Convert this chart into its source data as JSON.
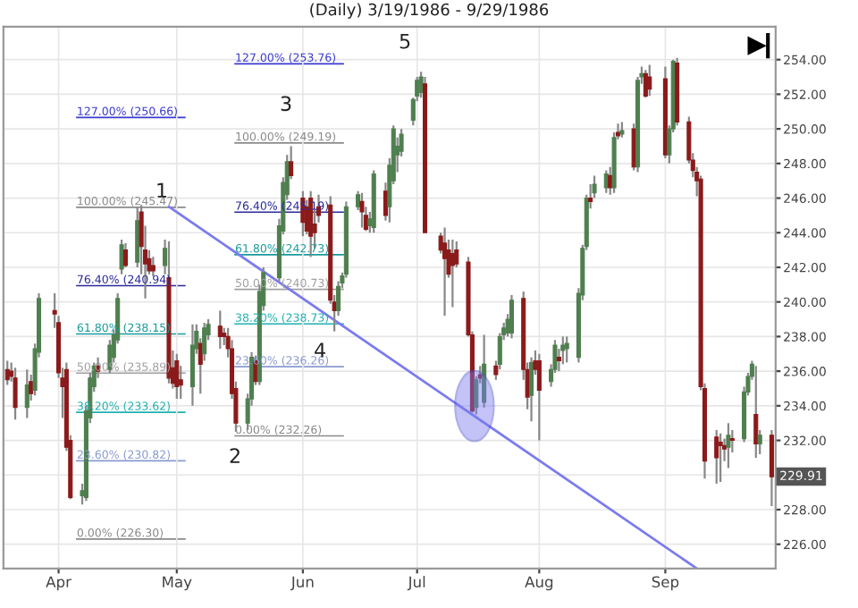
{
  "chart_data": {
    "type": "candlestick",
    "title": "(Daily) 3/19/1986 - 9/29/1986",
    "x": [
      "1986-03-19",
      "1986-03-20",
      "1986-03-21",
      "1986-03-24",
      "1986-03-25",
      "1986-03-26",
      "1986-03-27",
      "1986-03-31",
      "1986-04-01",
      "1986-04-02",
      "1986-04-03",
      "1986-04-04",
      "1986-04-07",
      "1986-04-08",
      "1986-04-09",
      "1986-04-10",
      "1986-04-11",
      "1986-04-14",
      "1986-04-15",
      "1986-04-16",
      "1986-04-17",
      "1986-04-18",
      "1986-04-21",
      "1986-04-22",
      "1986-04-23",
      "1986-04-24",
      "1986-04-25",
      "1986-04-28",
      "1986-04-29",
      "1986-04-30",
      "1986-05-01",
      "1986-05-02",
      "1986-05-05",
      "1986-05-06",
      "1986-05-07",
      "1986-05-08",
      "1986-05-09",
      "1986-05-12",
      "1986-05-13",
      "1986-05-14",
      "1986-05-15",
      "1986-05-16",
      "1986-05-19",
      "1986-05-20",
      "1986-05-21",
      "1986-05-22",
      "1986-05-23",
      "1986-05-27",
      "1986-05-28",
      "1986-05-29",
      "1986-05-30",
      "1986-06-02",
      "1986-06-03",
      "1986-06-04",
      "1986-06-05",
      "1986-06-06",
      "1986-06-09",
      "1986-06-10",
      "1986-06-11",
      "1986-06-12",
      "1986-06-13",
      "1986-06-16",
      "1986-06-17",
      "1986-06-18",
      "1986-06-19",
      "1986-06-20",
      "1986-06-23",
      "1986-06-24",
      "1986-06-25",
      "1986-06-26",
      "1986-06-27",
      "1986-06-30",
      "1986-07-01",
      "1986-07-02",
      "1986-07-03",
      "1986-07-07",
      "1986-07-08",
      "1986-07-09",
      "1986-07-10",
      "1986-07-11",
      "1986-07-14",
      "1986-07-15",
      "1986-07-16",
      "1986-07-17",
      "1986-07-18",
      "1986-07-21",
      "1986-07-22",
      "1986-07-23",
      "1986-07-24",
      "1986-07-25",
      "1986-07-28",
      "1986-07-29",
      "1986-07-30",
      "1986-07-31",
      "1986-08-01",
      "1986-08-04",
      "1986-08-05",
      "1986-08-06",
      "1986-08-07",
      "1986-08-08",
      "1986-08-11",
      "1986-08-12",
      "1986-08-13",
      "1986-08-14",
      "1986-08-15",
      "1986-08-18",
      "1986-08-19",
      "1986-08-20",
      "1986-08-21",
      "1986-08-22",
      "1986-08-25",
      "1986-08-26",
      "1986-08-27",
      "1986-08-28",
      "1986-08-29",
      "1986-09-02",
      "1986-09-03",
      "1986-09-04",
      "1986-09-05",
      "1986-09-08",
      "1986-09-09",
      "1986-09-10",
      "1986-09-11",
      "1986-09-12",
      "1986-09-15",
      "1986-09-16",
      "1986-09-17",
      "1986-09-18",
      "1986-09-19",
      "1986-09-22",
      "1986-09-23",
      "1986-09-24",
      "1986-09-25",
      "1986-09-26",
      "1986-09-29"
    ],
    "ohlc": [
      [
        236.1,
        236.6,
        235.2,
        235.5
      ],
      [
        236.0,
        236.5,
        235.4,
        235.7
      ],
      [
        235.6,
        236.2,
        233.2,
        233.9
      ],
      [
        233.9,
        236.1,
        233.3,
        235.2
      ],
      [
        235.4,
        235.8,
        234.3,
        234.7
      ],
      [
        234.9,
        237.6,
        234.6,
        237.3
      ],
      [
        237.1,
        240.5,
        236.8,
        240.2
      ],
      [
        239.5,
        240.5,
        238.5,
        239.3
      ],
      [
        238.8,
        239.2,
        235.6,
        235.9
      ],
      [
        235.6,
        236.2,
        233.3,
        235.1
      ],
      [
        236.1,
        236.5,
        231.4,
        231.6
      ],
      [
        232.0,
        232.3,
        228.6,
        228.7
      ],
      [
        228.8,
        229.5,
        228.3,
        229.1
      ],
      [
        228.7,
        234.0,
        228.5,
        233.7
      ],
      [
        233.3,
        235.9,
        233.0,
        235.6
      ],
      [
        235.1,
        236.5,
        234.8,
        236.3
      ],
      [
        236.3,
        236.8,
        235.6,
        236.0
      ],
      [
        236.1,
        237.8,
        235.9,
        237.5
      ],
      [
        236.8,
        238.4,
        236.5,
        238.1
      ],
      [
        237.8,
        240.5,
        237.6,
        240.2
      ],
      [
        241.9,
        243.6,
        241.6,
        243.3
      ],
      [
        243.0,
        243.4,
        242.0,
        242.1
      ],
      [
        242.3,
        245.5,
        242.0,
        244.7
      ],
      [
        245.2,
        245.6,
        241.6,
        243.2
      ],
      [
        243.0,
        244.4,
        240.2,
        242.2
      ],
      [
        242.5,
        243.0,
        241.6,
        241.8
      ],
      [
        242.1,
        242.6,
        241.5,
        241.8
      ],
      [
        242.1,
        243.6,
        241.6,
        243.1
      ],
      [
        241.4,
        243.5,
        235.3,
        235.6
      ],
      [
        236.2,
        237.2,
        235.0,
        235.3
      ],
      [
        236.6,
        237.0,
        234.4,
        235.1
      ],
      [
        235.5,
        236.3,
        234.4,
        235.2
      ],
      [
        235.1,
        238.7,
        234.0,
        237.5
      ],
      [
        237.3,
        238.7,
        237.0,
        238.3
      ],
      [
        237.6,
        237.9,
        234.7,
        236.4
      ],
      [
        237.0,
        238.8,
        236.6,
        238.5
      ],
      [
        238.1,
        239.0,
        237.8,
        238.7
      ],
      [
        238.6,
        239.5,
        237.3,
        238.0
      ],
      [
        238.2,
        238.5,
        237.5,
        238.0
      ],
      [
        238.0,
        238.5,
        236.8,
        237.3
      ],
      [
        237.3,
        237.8,
        234.4,
        234.7
      ],
      [
        235.0,
        235.4,
        232.5,
        233.0
      ],
      [
        233.0,
        234.7,
        232.6,
        234.4
      ],
      [
        234.4,
        237.1,
        234.0,
        236.8
      ],
      [
        236.6,
        236.9,
        235.2,
        235.4
      ],
      [
        235.4,
        241.0,
        235.2,
        240.6
      ],
      [
        239.8,
        242.0,
        239.5,
        241.7
      ],
      [
        241.4,
        244.8,
        241.2,
        244.4
      ],
      [
        244.1,
        247.2,
        243.9,
        246.9
      ],
      [
        246.2,
        248.5,
        245.9,
        248.1
      ],
      [
        248.1,
        249.0,
        247.1,
        247.3
      ],
      [
        246.0,
        246.4,
        243.8,
        244.6
      ],
      [
        245.5,
        245.9,
        243.9,
        244.1
      ],
      [
        246.0,
        246.4,
        242.6,
        243.8
      ],
      [
        244.5,
        245.3,
        243.1,
        244.0
      ],
      [
        245.5,
        246.2,
        244.6,
        245.0
      ],
      [
        245.6,
        246.1,
        239.9,
        240.1
      ],
      [
        240.0,
        240.4,
        238.3,
        239.5
      ],
      [
        239.5,
        241.2,
        239.2,
        240.9
      ],
      [
        241.1,
        241.7,
        240.8,
        241.5
      ],
      [
        241.6,
        245.8,
        241.4,
        245.5
      ],
      [
        245.5,
        246.4,
        245.3,
        246.2
      ],
      [
        245.8,
        246.3,
        244.3,
        245.2
      ],
      [
        245.0,
        245.5,
        244.1,
        244.2
      ],
      [
        244.4,
        245.2,
        244.0,
        244.8
      ],
      [
        244.3,
        247.6,
        244.0,
        247.4
      ],
      [
        246.4,
        246.9,
        244.7,
        245.0
      ],
      [
        245.5,
        248.3,
        244.6,
        247.9
      ],
      [
        247.0,
        250.2,
        246.8,
        250.0
      ],
      [
        248.5,
        249.5,
        247.5,
        249.0
      ],
      [
        248.7,
        250.0,
        248.4,
        249.7
      ],
      [
        250.5,
        251.8,
        250.2,
        251.7
      ],
      [
        251.9,
        253.0,
        251.6,
        252.8
      ],
      [
        252.1,
        253.3,
        251.8,
        253.0
      ],
      [
        252.6,
        253.0,
        244.0,
        244.0
      ],
      [
        243.8,
        244.0,
        242.8,
        243.0
      ],
      [
        243.4,
        244.3,
        239.2,
        242.5
      ],
      [
        243.0,
        243.6,
        241.4,
        241.6
      ],
      [
        242.8,
        243.6,
        239.7,
        242.1
      ],
      [
        243.0,
        243.5,
        242.0,
        242.2
      ],
      [
        242.3,
        242.6,
        238.0,
        238.1
      ],
      [
        238.1,
        238.3,
        233.6,
        233.7
      ],
      [
        233.9,
        235.7,
        233.5,
        235.5
      ],
      [
        235.8,
        236.3,
        235.3,
        235.6
      ],
      [
        234.2,
        238.1,
        233.9,
        236.4
      ],
      [
        236.3,
        236.6,
        235.5,
        235.8
      ],
      [
        236.4,
        238.2,
        236.1,
        238.0
      ],
      [
        238.1,
        238.8,
        237.8,
        238.5
      ],
      [
        238.2,
        239.3,
        238.0,
        239.0
      ],
      [
        238.2,
        240.4,
        237.9,
        240.1
      ],
      [
        240.2,
        240.6,
        235.5,
        236.1
      ],
      [
        236.1,
        236.5,
        233.8,
        234.5
      ],
      [
        234.6,
        236.8,
        233.1,
        236.5
      ],
      [
        236.6,
        237.2,
        235.8,
        236.1
      ],
      [
        236.6,
        237.0,
        232.0,
        234.9
      ],
      [
        235.4,
        236.4,
        235.1,
        236.1
      ],
      [
        236.1,
        237.8,
        235.9,
        237.5
      ],
      [
        236.8,
        237.3,
        236.0,
        236.6
      ],
      [
        237.2,
        238.0,
        236.4,
        237.5
      ],
      [
        237.3,
        238.0,
        236.5,
        237.6
      ],
      [
        236.8,
        240.8,
        236.5,
        240.5
      ],
      [
        240.4,
        243.3,
        240.1,
        243.1
      ],
      [
        243.2,
        246.2,
        243.0,
        246.0
      ],
      [
        246.0,
        246.8,
        245.4,
        245.8
      ],
      [
        246.3,
        247.3,
        246.0,
        246.8
      ],
      [
        246.6,
        247.6,
        246.3,
        247.4
      ],
      [
        247.3,
        247.8,
        246.2,
        246.6
      ],
      [
        246.6,
        249.8,
        246.3,
        249.5
      ],
      [
        249.8,
        250.3,
        249.4,
        249.6
      ],
      [
        249.7,
        250.4,
        249.5,
        249.9
      ],
      [
        250.0,
        250.3,
        247.6,
        247.8
      ],
      [
        247.8,
        253.0,
        247.5,
        252.8
      ],
      [
        253.0,
        253.6,
        252.6,
        253.2
      ],
      [
        253.2,
        253.4,
        251.8,
        251.9
      ],
      [
        253.0,
        253.7,
        251.9,
        252.3
      ],
      [
        252.9,
        253.6,
        248.3,
        248.5
      ],
      [
        248.5,
        250.2,
        248.0,
        250.0
      ],
      [
        250.0,
        254.0,
        249.8,
        253.9
      ],
      [
        253.8,
        254.1,
        250.2,
        250.4
      ],
      [
        250.4,
        250.7,
        248.0,
        248.2
      ],
      [
        248.2,
        248.6,
        247.2,
        247.6
      ],
      [
        247.5,
        247.8,
        246.1,
        247.0
      ],
      [
        247.1,
        247.3,
        234.9,
        235.1
      ],
      [
        235.0,
        235.3,
        229.8,
        230.8
      ],
      [
        232.2,
        232.6,
        229.5,
        231.0
      ],
      [
        231.9,
        232.4,
        229.6,
        231.7
      ],
      [
        231.7,
        232.1,
        230.8,
        231.5
      ],
      [
        231.6,
        233.0,
        230.4,
        232.3
      ],
      [
        232.1,
        232.6,
        231.3,
        232.0
      ],
      [
        232.1,
        235.1,
        231.9,
        234.8
      ],
      [
        234.8,
        235.9,
        234.6,
        235.7
      ],
      [
        235.7,
        236.6,
        235.5,
        236.4
      ],
      [
        233.5,
        236.3,
        231.0,
        231.8
      ],
      [
        231.8,
        232.6,
        231.2,
        232.3
      ],
      [
        232.3,
        232.6,
        228.2,
        229.9
      ]
    ],
    "colors": [
      "#8b1a1a",
      "#8b1a1a",
      "#8b1a1a",
      "#4f7f4f",
      "#8b1a1a",
      "#4f7f4f",
      "#4f7f4f",
      "#8b1a1a",
      "#8b1a1a",
      "#8b1a1a",
      "#8b1a1a",
      "#8b1a1a",
      "#4f7f4f",
      "#4f7f4f",
      "#4f7f4f",
      "#4f7f4f",
      "#8b1a1a",
      "#4f7f4f",
      "#4f7f4f",
      "#4f7f4f",
      "#4f7f4f",
      "#8b1a1a",
      "#4f7f4f",
      "#8b1a1a",
      "#8b1a1a",
      "#8b1a1a",
      "#8b1a1a",
      "#4f7f4f",
      "#8b1a1a",
      "#8b1a1a",
      "#8b1a1a",
      "#8b1a1a",
      "#4f7f4f",
      "#4f7f4f",
      "#8b1a1a",
      "#4f7f4f",
      "#4f7f4f",
      "#8b1a1a",
      "#8b1a1a",
      "#8b1a1a",
      "#8b1a1a",
      "#8b1a1a",
      "#4f7f4f",
      "#4f7f4f",
      "#8b1a1a",
      "#4f7f4f",
      "#4f7f4f",
      "#4f7f4f",
      "#4f7f4f",
      "#4f7f4f",
      "#8b1a1a",
      "#8b1a1a",
      "#8b1a1a",
      "#8b1a1a",
      "#8b1a1a",
      "#8b1a1a",
      "#8b1a1a",
      "#8b1a1a",
      "#4f7f4f",
      "#4f7f4f",
      "#4f7f4f",
      "#4f7f4f",
      "#8b1a1a",
      "#8b1a1a",
      "#4f7f4f",
      "#4f7f4f",
      "#8b1a1a",
      "#4f7f4f",
      "#4f7f4f",
      "#4f7f4f",
      "#4f7f4f",
      "#4f7f4f",
      "#4f7f4f",
      "#4f7f4f",
      "#8b1a1a",
      "#8b1a1a",
      "#8b1a1a",
      "#8b1a1a",
      "#8b1a1a",
      "#8b1a1a",
      "#8b1a1a",
      "#8b1a1a",
      "#4f7f4f",
      "#8b1a1a",
      "#4f7f4f",
      "#8b1a1a",
      "#4f7f4f",
      "#4f7f4f",
      "#4f7f4f",
      "#4f7f4f",
      "#8b1a1a",
      "#8b1a1a",
      "#4f7f4f",
      "#8b1a1a",
      "#8b1a1a",
      "#4f7f4f",
      "#4f7f4f",
      "#8b1a1a",
      "#4f7f4f",
      "#4f7f4f",
      "#4f7f4f",
      "#4f7f4f",
      "#4f7f4f",
      "#8b1a1a",
      "#4f7f4f",
      "#4f7f4f",
      "#8b1a1a",
      "#4f7f4f",
      "#8b1a1a",
      "#4f7f4f",
      "#8b1a1a",
      "#4f7f4f",
      "#4f7f4f",
      "#8b1a1a",
      "#8b1a1a",
      "#8b1a1a",
      "#4f7f4f",
      "#4f7f4f",
      "#8b1a1a",
      "#8b1a1a",
      "#8b1a1a",
      "#8b1a1a",
      "#8b1a1a",
      "#8b1a1a",
      "#8b1a1a",
      "#8b1a1a",
      "#8b1a1a",
      "#4f7f4f",
      "#8b1a1a",
      "#4f7f4f",
      "#4f7f4f",
      "#4f7f4f",
      "#8b1a1a",
      "#4f7f4f",
      "#8b1a1a"
    ],
    "series": [
      {
        "type": "line",
        "color": "#7b7bf0",
        "x": [
          "1986-04-29",
          "1986-09-10"
        ],
        "values": [
          245.5,
          224.6
        ]
      }
    ],
    "xlim": [
      "1986-03-18",
      "1986-09-30"
    ],
    "xticks": [
      {
        "value": "1986-04-01",
        "label": "Apr"
      },
      {
        "value": "1986-05-01",
        "label": "May"
      },
      {
        "value": "1986-06-02",
        "label": "Jun"
      },
      {
        "value": "1986-07-01",
        "label": "Jul"
      },
      {
        "value": "1986-08-01",
        "label": "Aug"
      },
      {
        "value": "1986-09-02",
        "label": "Sep"
      }
    ],
    "ylim": [
      224.6,
      255.9
    ],
    "yticks": [
      {
        "value": 226,
        "label": "226.00"
      },
      {
        "value": 228,
        "label": "228.00"
      },
      {
        "value": 230,
        "label": null
      },
      {
        "value": 232,
        "label": "232.00"
      },
      {
        "value": 234,
        "label": "234.00"
      },
      {
        "value": 236,
        "label": "236.00"
      },
      {
        "value": 238,
        "label": "238.00"
      },
      {
        "value": 240,
        "label": "240.00"
      },
      {
        "value": 242,
        "label": "242.00"
      },
      {
        "value": 244,
        "label": "244.00"
      },
      {
        "value": 246,
        "label": "246.00"
      },
      {
        "value": 248,
        "label": "248.00"
      },
      {
        "value": 250,
        "label": "250.00"
      },
      {
        "value": 252,
        "label": "252.00"
      },
      {
        "value": 254,
        "label": "254.00"
      }
    ],
    "grid": true,
    "ref_lines": [
      {
        "axis": "y",
        "value": 250.66,
        "label": "127.00% (250.66)",
        "color": "#3a3ad0"
      },
      {
        "axis": "y",
        "value": 245.47,
        "label": "100.00% (245.47)",
        "color": "#8a8a8a"
      },
      {
        "axis": "y",
        "value": 240.94,
        "label": "76.40% (240.94)",
        "color": "#2a2a9a"
      },
      {
        "axis": "y",
        "value": 238.15,
        "label": "61.80% (238.15)",
        "color": "#1a9a9a"
      },
      {
        "axis": "y",
        "value": 235.89,
        "label": "50.00% (235.89)",
        "color": "#a0a0a0"
      },
      {
        "axis": "y",
        "value": 233.62,
        "label": "38.20% (233.62)",
        "color": "#20b0b0"
      },
      {
        "axis": "y",
        "value": 230.82,
        "label": "23.60% (230.82)",
        "color": "#8a9ad0"
      },
      {
        "axis": "y",
        "value": 226.3,
        "label": "0.00% (226.30)",
        "color": "#8a8a8a"
      },
      {
        "axis": "y",
        "value": 253.76,
        "label": "127.00% (253.76)",
        "color": "#3a3ad0"
      },
      {
        "axis": "y",
        "value": 249.19,
        "label": "100.00% (249.19)",
        "color": "#8a8a8a"
      },
      {
        "axis": "y",
        "value": 245.19,
        "label": "76.40% (245.19)",
        "color": "#2a2a9a"
      },
      {
        "axis": "y",
        "value": 242.73,
        "label": "61.80% (242.73)",
        "color": "#1a9a9a"
      },
      {
        "axis": "y",
        "value": 240.73,
        "label": "50.00% (240.73)",
        "color": "#a0a0a0"
      },
      {
        "axis": "y",
        "value": 238.73,
        "label": "38.20% (238.73)",
        "color": "#20b0b0"
      },
      {
        "axis": "y",
        "value": 236.26,
        "label": "23.60% (236.26)",
        "color": "#8a9ad0"
      },
      {
        "axis": "y",
        "value": 232.26,
        "label": "0.00% (232.26)",
        "color": "#8a8a8a"
      }
    ],
    "annotations": [
      "1",
      "2",
      "3",
      "4",
      "5",
      {
        "text": "229.91",
        "x": "1986-09-29",
        "y": 229.91
      }
    ]
  }
}
